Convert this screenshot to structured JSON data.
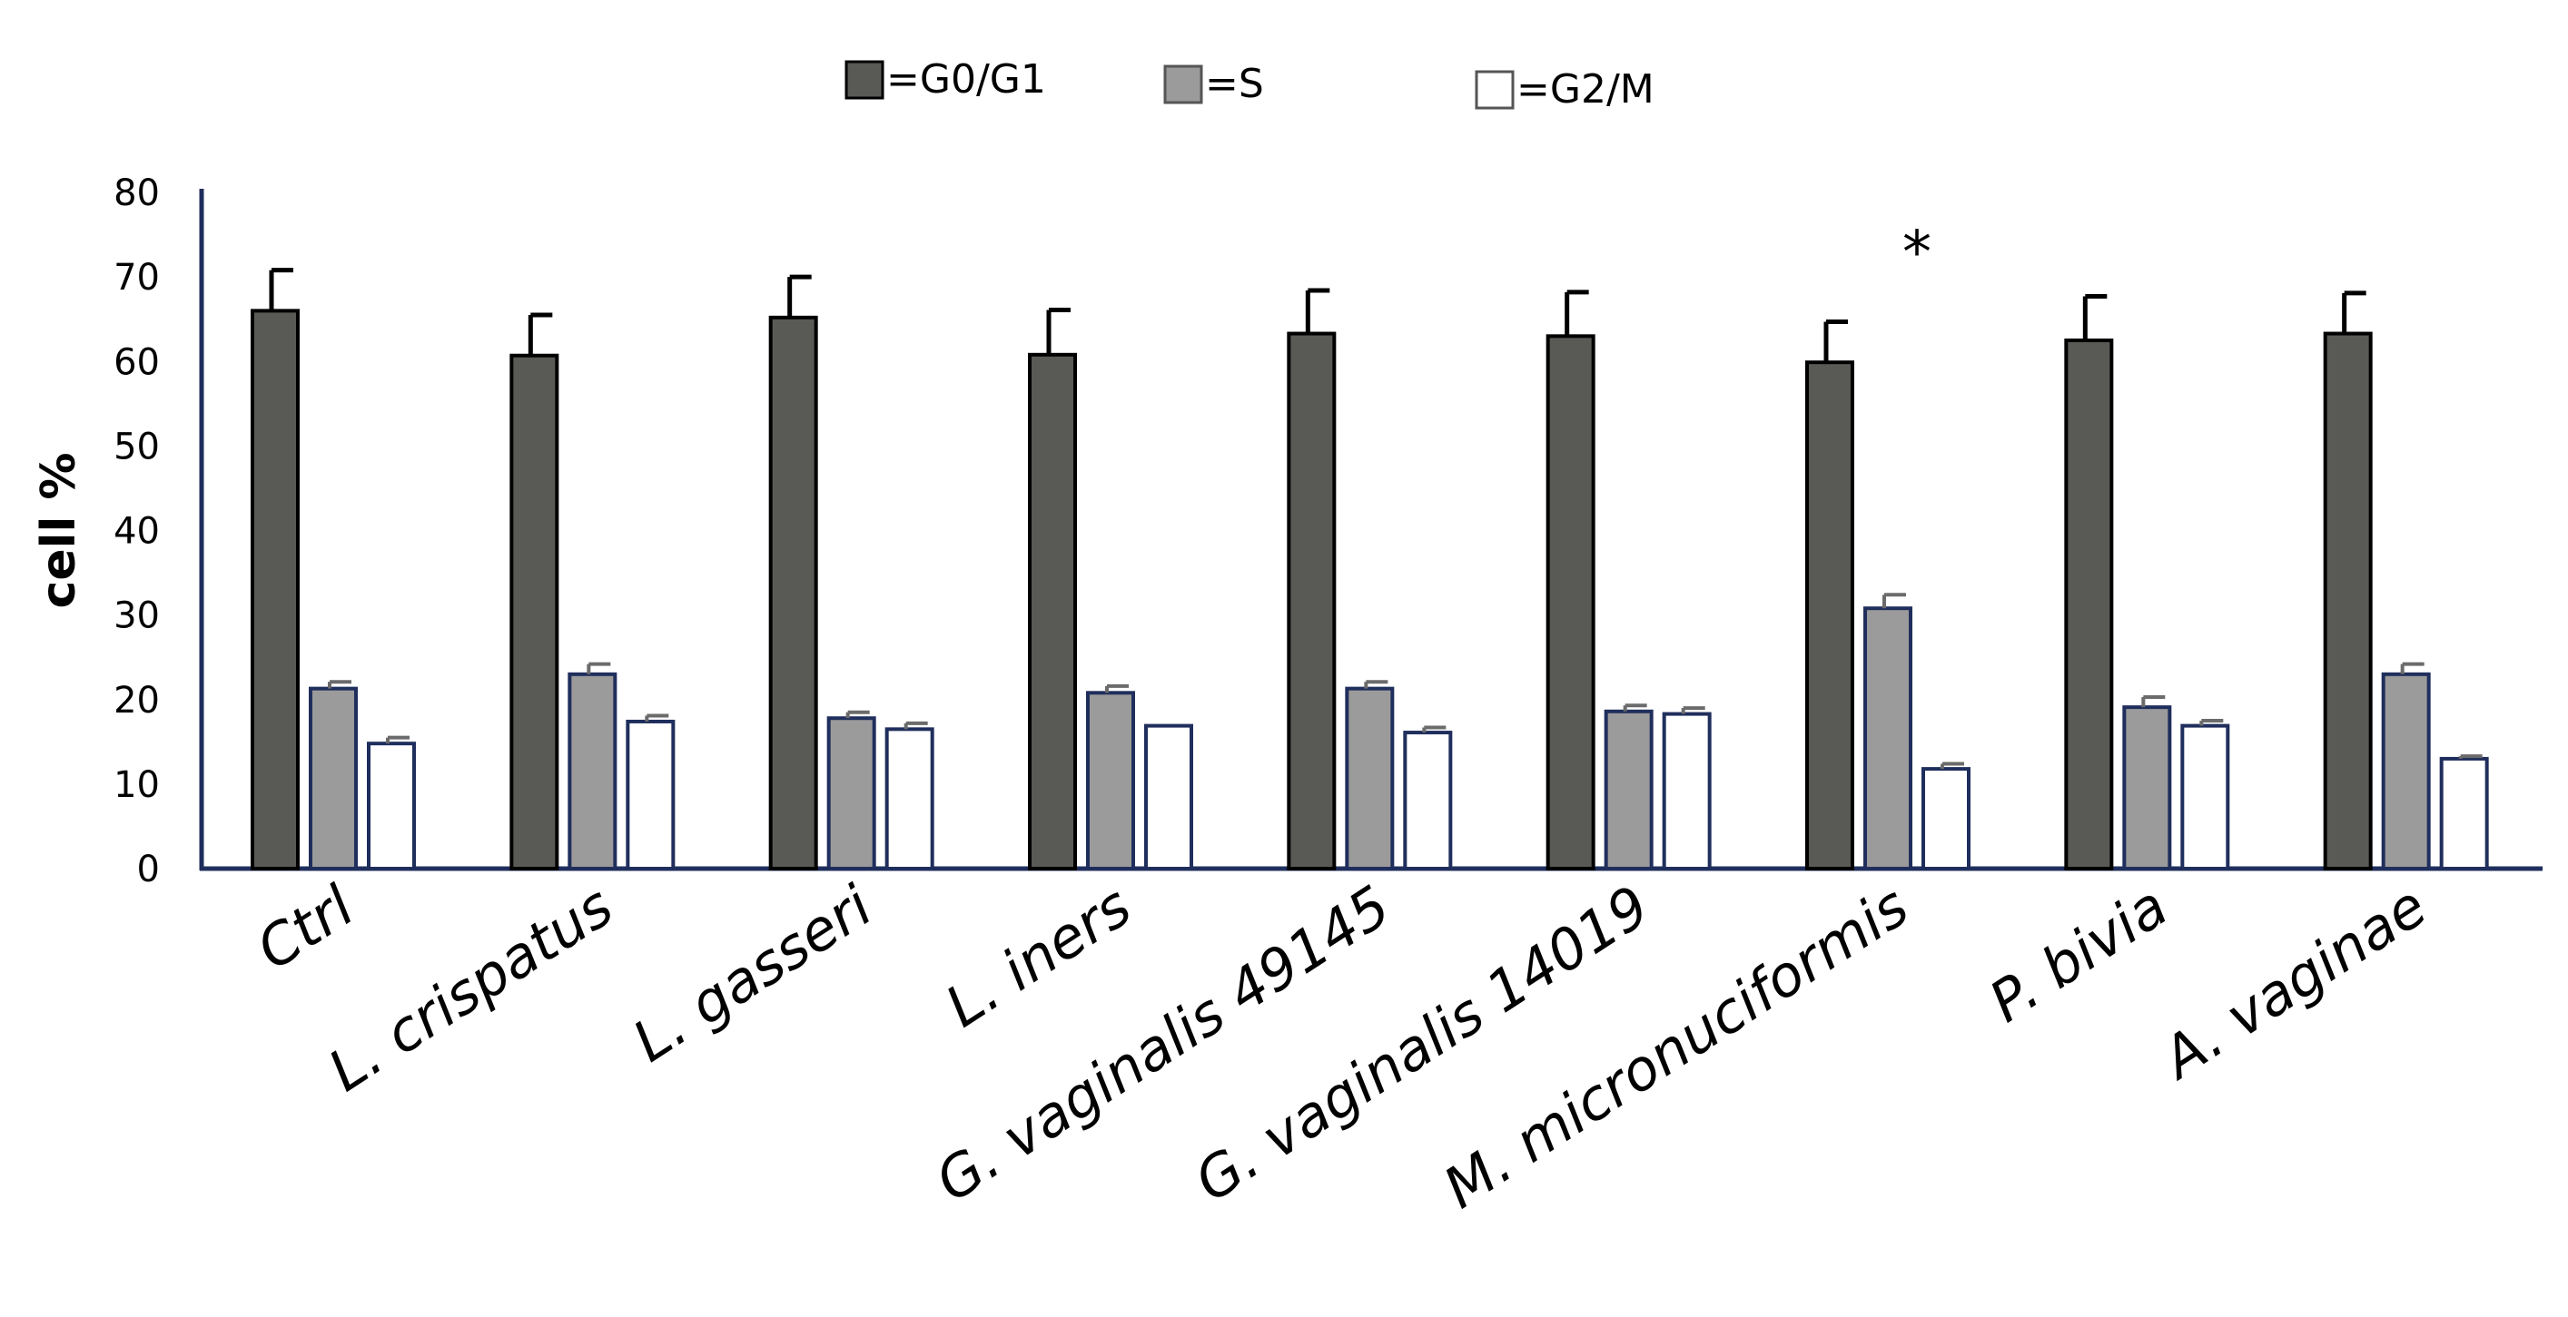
{
  "chart_data": {
    "type": "bar",
    "title": "",
    "xlabel": "",
    "ylabel": "cell %",
    "ylim": [
      0,
      80
    ],
    "yticks": [
      "0",
      "10",
      "20",
      "30",
      "40",
      "50",
      "60",
      "70",
      "80"
    ],
    "grid": false,
    "legend_position": "top",
    "categories": [
      "Ctrl",
      "L. crispatus",
      "L. gasseri",
      "L. iners",
      "G. vaginalis 49145",
      "G. vaginalis 14019",
      "M. micronuciformis",
      "P. bivia",
      "A. vaginae"
    ],
    "series": [
      {
        "name": "G0/G1",
        "legend_label": "=G0/G1",
        "color": "#595a55",
        "stroke": "#000000",
        "values": [
          66,
          60.7,
          65.2,
          60.8,
          63.3,
          63,
          59.9,
          62.5,
          63.3
        ],
        "errors": [
          4.8,
          4.8,
          4.8,
          5.3,
          5.1,
          5.2,
          4.8,
          5.2,
          4.8
        ]
      },
      {
        "name": "S",
        "legend_label": "=S",
        "color": "#9b9b9b",
        "stroke": "#1f2e5c",
        "values": [
          21.3,
          23,
          17.8,
          20.8,
          21.3,
          18.6,
          30.8,
          19.1,
          23
        ],
        "errors": [
          0.8,
          1.2,
          0.7,
          0.8,
          0.8,
          0.7,
          1.6,
          1.2,
          1.2
        ]
      },
      {
        "name": "G2/M",
        "legend_label": "=G2/M",
        "color": "#ffffff",
        "stroke": "#1f2e5c",
        "values": [
          14.8,
          17.4,
          16.5,
          16.9,
          16.1,
          18.3,
          11.8,
          16.9,
          13
        ],
        "errors": [
          0.7,
          0.7,
          0.7,
          0,
          0.6,
          0.7,
          0.6,
          0.6,
          0.3
        ]
      }
    ],
    "annotations": [
      {
        "text": "*",
        "category": "M. micronuciformis"
      }
    ]
  }
}
